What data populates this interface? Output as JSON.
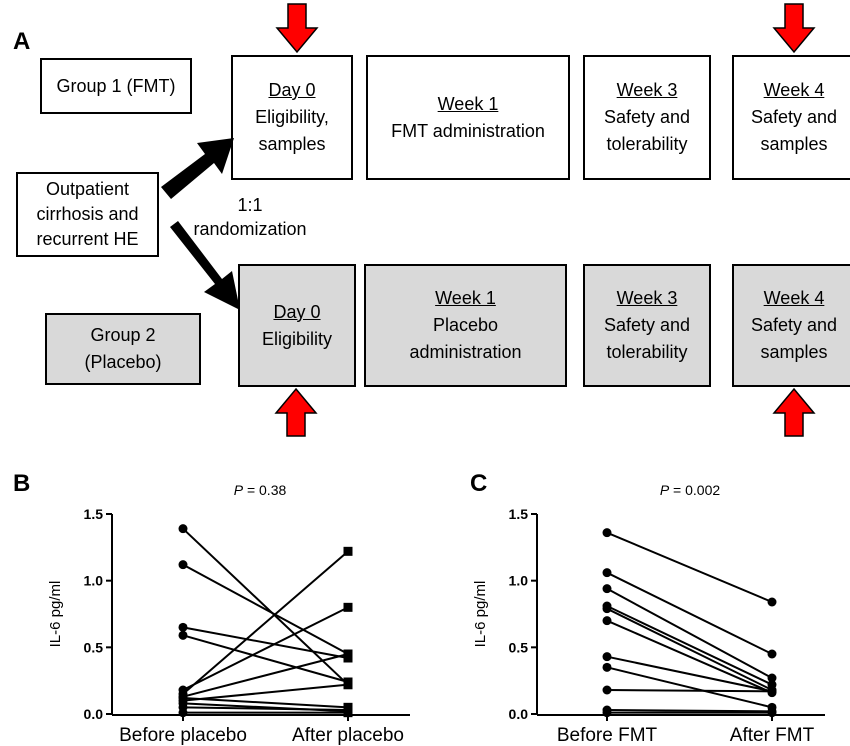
{
  "panel_a": {
    "letter": "A",
    "group1_label": "Group 1 (FMT)",
    "group2_label_line1": "Group 2",
    "group2_label_line2": "(Placebo)",
    "start_box": [
      "Outpatient",
      "cirrhosis and",
      "recurrent HE"
    ],
    "randomization": [
      "1:1",
      "randomization"
    ],
    "group1_boxes": [
      {
        "title": "Day 0",
        "lines": [
          "Eligibility,",
          "samples"
        ]
      },
      {
        "title": "Week 1",
        "lines": [
          "FMT administration"
        ]
      },
      {
        "title": "Week 3",
        "lines": [
          "Safety and",
          "tolerability"
        ]
      },
      {
        "title": "Week 4",
        "lines": [
          "Safety and",
          "samples"
        ]
      }
    ],
    "group2_boxes": [
      {
        "title": "Day 0",
        "lines": [
          "Eligibility"
        ]
      },
      {
        "title": "Week 1",
        "lines": [
          "Placebo",
          "administration"
        ]
      },
      {
        "title": "Week 3",
        "lines": [
          "Safety and",
          "tolerability"
        ]
      },
      {
        "title": "Week 4",
        "lines": [
          "Safety and",
          "samples"
        ]
      }
    ],
    "arrow_color": "#ff0000"
  },
  "chart_data": [
    {
      "type": "line",
      "panel": "B",
      "annotation_p": "P",
      "annotation_value": " = 0.38",
      "ylabel": "IL-6 pg/ml",
      "categories": [
        "Before placebo",
        "After placebo"
      ],
      "ylim": [
        0,
        1.5
      ],
      "yticks": [
        "0.0",
        "0.5",
        "1.0",
        "1.5"
      ],
      "before_marker": "circle",
      "after_marker": "square",
      "pairs": [
        [
          1.39,
          0.22
        ],
        [
          1.12,
          0.45
        ],
        [
          0.65,
          0.42
        ],
        [
          0.59,
          0.24
        ],
        [
          0.18,
          0.8
        ],
        [
          0.15,
          1.22
        ],
        [
          0.13,
          0.45
        ],
        [
          0.12,
          0.05
        ],
        [
          0.1,
          0.22
        ],
        [
          0.08,
          0.02
        ],
        [
          0.05,
          0.03
        ],
        [
          0.01,
          0.01
        ]
      ]
    },
    {
      "type": "line",
      "panel": "C",
      "annotation_p": "P",
      "annotation_value": " = 0.002",
      "ylabel": "IL-6 pg/ml",
      "categories": [
        "Before FMT",
        "After FMT"
      ],
      "ylim": [
        0,
        1.5
      ],
      "yticks": [
        "0.0",
        "0.5",
        "1.0",
        "1.5"
      ],
      "before_marker": "circle",
      "after_marker": "circle",
      "pairs": [
        [
          1.36,
          0.84
        ],
        [
          1.06,
          0.45
        ],
        [
          0.94,
          0.27
        ],
        [
          0.81,
          0.22
        ],
        [
          0.79,
          0.18
        ],
        [
          0.7,
          0.16
        ],
        [
          0.43,
          0.17
        ],
        [
          0.35,
          0.05
        ],
        [
          0.18,
          0.17
        ],
        [
          0.03,
          0.02
        ],
        [
          0.01,
          0.01
        ]
      ]
    }
  ]
}
